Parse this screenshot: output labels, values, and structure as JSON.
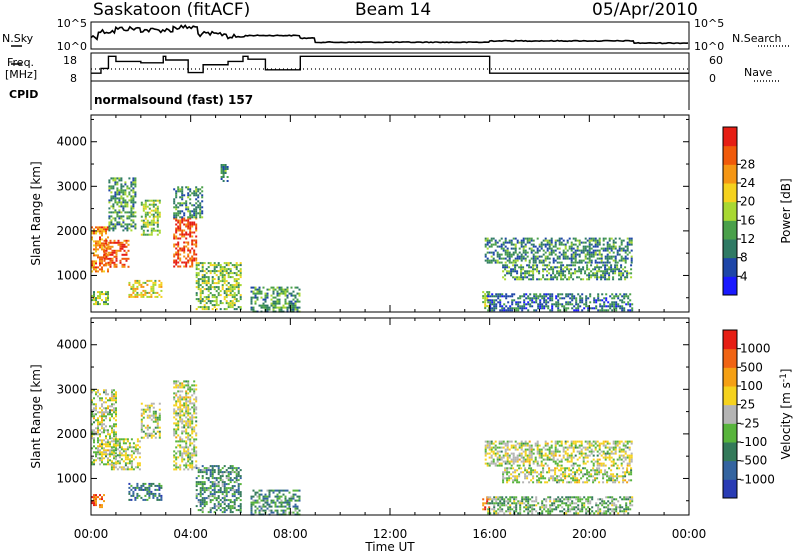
{
  "header": {
    "site": "Saskatoon (fitACF)",
    "beam": "Beam 14",
    "date": "05/Apr/2010"
  },
  "summary": {
    "nsky_label": "N.Sky",
    "nsearch_label": "N.Search",
    "freq_label_1": "Freq.",
    "freq_label_2": "[MHz]",
    "nave_label": "Nave",
    "cpid_label": "CPID",
    "cpid_text": "normalsound (fast) 157",
    "noise_left_ticks": [
      "10^5",
      "10^0"
    ],
    "noise_right_ticks": [
      "10^5",
      "10^0"
    ],
    "freq_ticks": [
      "18",
      "8"
    ],
    "nave_ticks": [
      "60",
      "0"
    ]
  },
  "colorbars": {
    "power": {
      "title": "Power [dB]",
      "ticks": [
        "4",
        "8",
        "12",
        "16",
        "20",
        "24",
        "28"
      ],
      "colors": [
        "#1a1aff",
        "#1e46a8",
        "#2f7a64",
        "#4aa04a",
        "#a8d832",
        "#f5d21e",
        "#f59614",
        "#f05a0a",
        "#e61e14"
      ]
    },
    "velocity": {
      "title": "Velocity [m s-1]",
      "ticks": [
        "1000",
        "500",
        "100",
        "25",
        "-25",
        "-100",
        "-500",
        "-1000"
      ],
      "colors": [
        "#2a3cb4",
        "#3464a0",
        "#347a5a",
        "#58b43c",
        "#b4b4b4",
        "#f5d21e",
        "#f5a014",
        "#f06414",
        "#e61e14"
      ]
    }
  },
  "chart_data": [
    {
      "type": "heatmap",
      "title": "Power [dB]",
      "xlabel": "Time UT",
      "ylabel": "Slant Range [km]",
      "x_ticks": [
        "00:00",
        "04:00",
        "08:00",
        "12:00",
        "16:00",
        "20:00",
        "00:00"
      ],
      "y_ticks": [
        1000,
        2000,
        3000,
        4000
      ],
      "xlim_hours": [
        0,
        24
      ],
      "ylim_km": [
        180,
        4600
      ],
      "echo_regions": [
        {
          "t": [
            0.0,
            0.7
          ],
          "r": [
            1100,
            2100
          ],
          "level": 0.75
        },
        {
          "t": [
            0.0,
            0.7
          ],
          "r": [
            350,
            650
          ],
          "level": 0.45
        },
        {
          "t": [
            0.5,
            1.5
          ],
          "r": [
            1200,
            1800
          ],
          "level": 0.85
        },
        {
          "t": [
            0.7,
            1.8
          ],
          "r": [
            2000,
            3200
          ],
          "level": 0.35
        },
        {
          "t": [
            1.5,
            2.8
          ],
          "r": [
            500,
            900
          ],
          "level": 0.6
        },
        {
          "t": [
            2.0,
            2.8
          ],
          "r": [
            1900,
            2700
          ],
          "level": 0.45
        },
        {
          "t": [
            3.3,
            4.2
          ],
          "r": [
            1200,
            2300
          ],
          "level": 0.85
        },
        {
          "t": [
            3.3,
            4.5
          ],
          "r": [
            2300,
            3000
          ],
          "level": 0.3
        },
        {
          "t": [
            4.2,
            6.0
          ],
          "r": [
            250,
            1300
          ],
          "level": 0.45
        },
        {
          "t": [
            5.2,
            5.5
          ],
          "r": [
            3100,
            3500
          ],
          "level": 0.3
        },
        {
          "t": [
            6.4,
            8.4
          ],
          "r": [
            200,
            750
          ],
          "level": 0.35
        },
        {
          "t": [
            15.7,
            16.0
          ],
          "r": [
            250,
            650
          ],
          "level": 0.5
        },
        {
          "t": [
            15.8,
            21.7
          ],
          "r": [
            1300,
            1850
          ],
          "level": 0.3
        },
        {
          "t": [
            16.5,
            21.7
          ],
          "r": [
            900,
            1250
          ],
          "level": 0.35
        },
        {
          "t": [
            15.9,
            21.7
          ],
          "r": [
            200,
            600
          ],
          "level": 0.25
        }
      ]
    },
    {
      "type": "heatmap",
      "title": "Velocity [m s-1]",
      "xlabel": "Time UT",
      "ylabel": "Slant Range [km]",
      "x_ticks": [
        "00:00",
        "04:00",
        "08:00",
        "12:00",
        "16:00",
        "20:00",
        "00:00"
      ],
      "y_ticks": [
        1000,
        2000,
        3000,
        4000
      ],
      "xlim_hours": [
        0,
        24
      ],
      "ylim_km": [
        180,
        4600
      ],
      "echo_regions": [
        {
          "t": [
            0.0,
            1.0
          ],
          "r": [
            1300,
            3000
          ],
          "level": 0.5
        },
        {
          "t": [
            0.0,
            0.5
          ],
          "r": [
            350,
            650
          ],
          "level": 0.85
        },
        {
          "t": [
            0.8,
            2.0
          ],
          "r": [
            1200,
            1900
          ],
          "level": 0.5
        },
        {
          "t": [
            1.5,
            2.8
          ],
          "r": [
            500,
            900
          ],
          "level": 0.25
        },
        {
          "t": [
            2.0,
            2.8
          ],
          "r": [
            1900,
            2700
          ],
          "level": 0.5
        },
        {
          "t": [
            3.3,
            4.2
          ],
          "r": [
            1200,
            3200
          ],
          "level": 0.5
        },
        {
          "t": [
            4.2,
            6.0
          ],
          "r": [
            250,
            1300
          ],
          "level": 0.3
        },
        {
          "t": [
            6.4,
            8.4
          ],
          "r": [
            200,
            750
          ],
          "level": 0.3
        },
        {
          "t": [
            15.7,
            16.0
          ],
          "r": [
            300,
            600
          ],
          "level": 0.85
        },
        {
          "t": [
            15.8,
            21.7
          ],
          "r": [
            1300,
            1850
          ],
          "level": 0.5
        },
        {
          "t": [
            16.5,
            21.7
          ],
          "r": [
            900,
            1250
          ],
          "level": 0.5
        },
        {
          "t": [
            15.9,
            21.7
          ],
          "r": [
            200,
            600
          ],
          "level": 0.4
        }
      ]
    }
  ]
}
